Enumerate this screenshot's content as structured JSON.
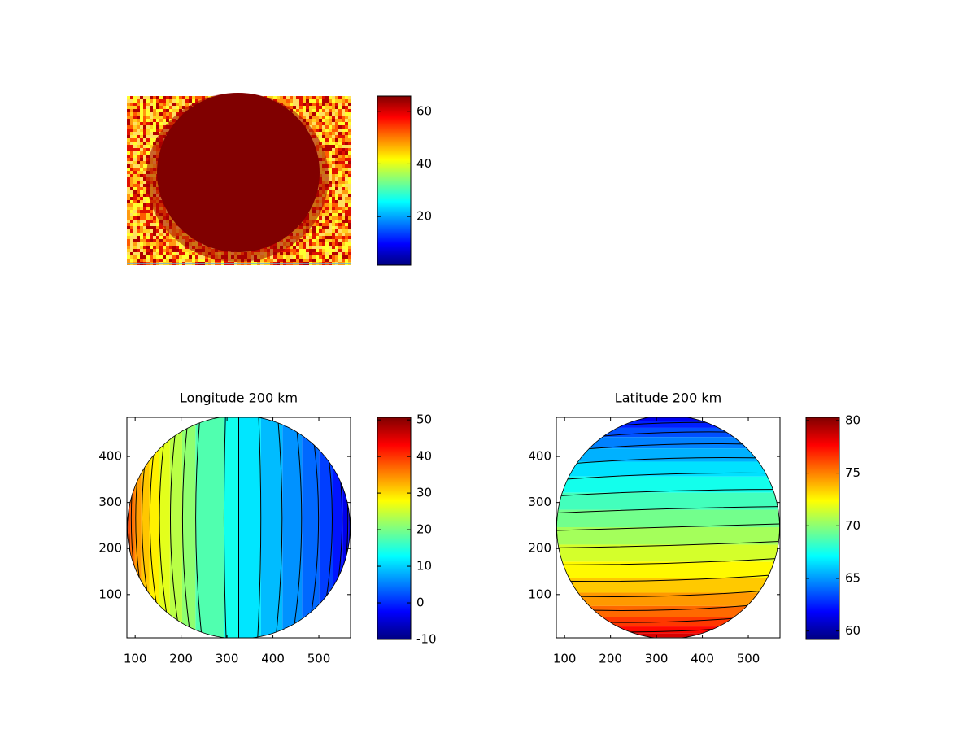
{
  "chart_data": [
    {
      "type": "image",
      "clim": [
        1.5,
        65.8
      ],
      "cticks": [
        20,
        40,
        60
      ],
      "colormap": "jet"
    },
    {
      "type": "contour",
      "title": "Longitude 200 km",
      "xlim": [
        82,
        569
      ],
      "ylim": [
        6,
        485
      ],
      "xticks": [
        100,
        200,
        300,
        400,
        500
      ],
      "yticks": [
        100,
        200,
        300,
        400
      ],
      "clim": [
        -10,
        50.7
      ],
      "cticks": [
        -10,
        0,
        10,
        20,
        30,
        40,
        50
      ],
      "colormap": "jet",
      "levels": [
        -5,
        -2.5,
        0,
        2.5,
        5,
        7.5,
        10,
        12.5,
        15,
        20,
        22.5,
        25,
        27.5,
        30,
        32.5,
        35,
        37.5,
        40
      ]
    },
    {
      "type": "contour",
      "title": "Latitude 200 km",
      "xlim": [
        82,
        569
      ],
      "ylim": [
        6,
        485
      ],
      "xticks": [
        100,
        200,
        300,
        400,
        500
      ],
      "yticks": [
        100,
        200,
        300,
        400
      ],
      "clim": [
        59.2,
        80.3
      ],
      "cticks": [
        60,
        65,
        70,
        75,
        80
      ],
      "colormap": "jet",
      "levels": [
        61,
        62,
        63,
        64,
        65,
        66,
        67,
        68,
        69,
        70,
        71,
        72,
        73,
        74,
        75,
        76,
        77,
        78,
        79
      ]
    }
  ]
}
